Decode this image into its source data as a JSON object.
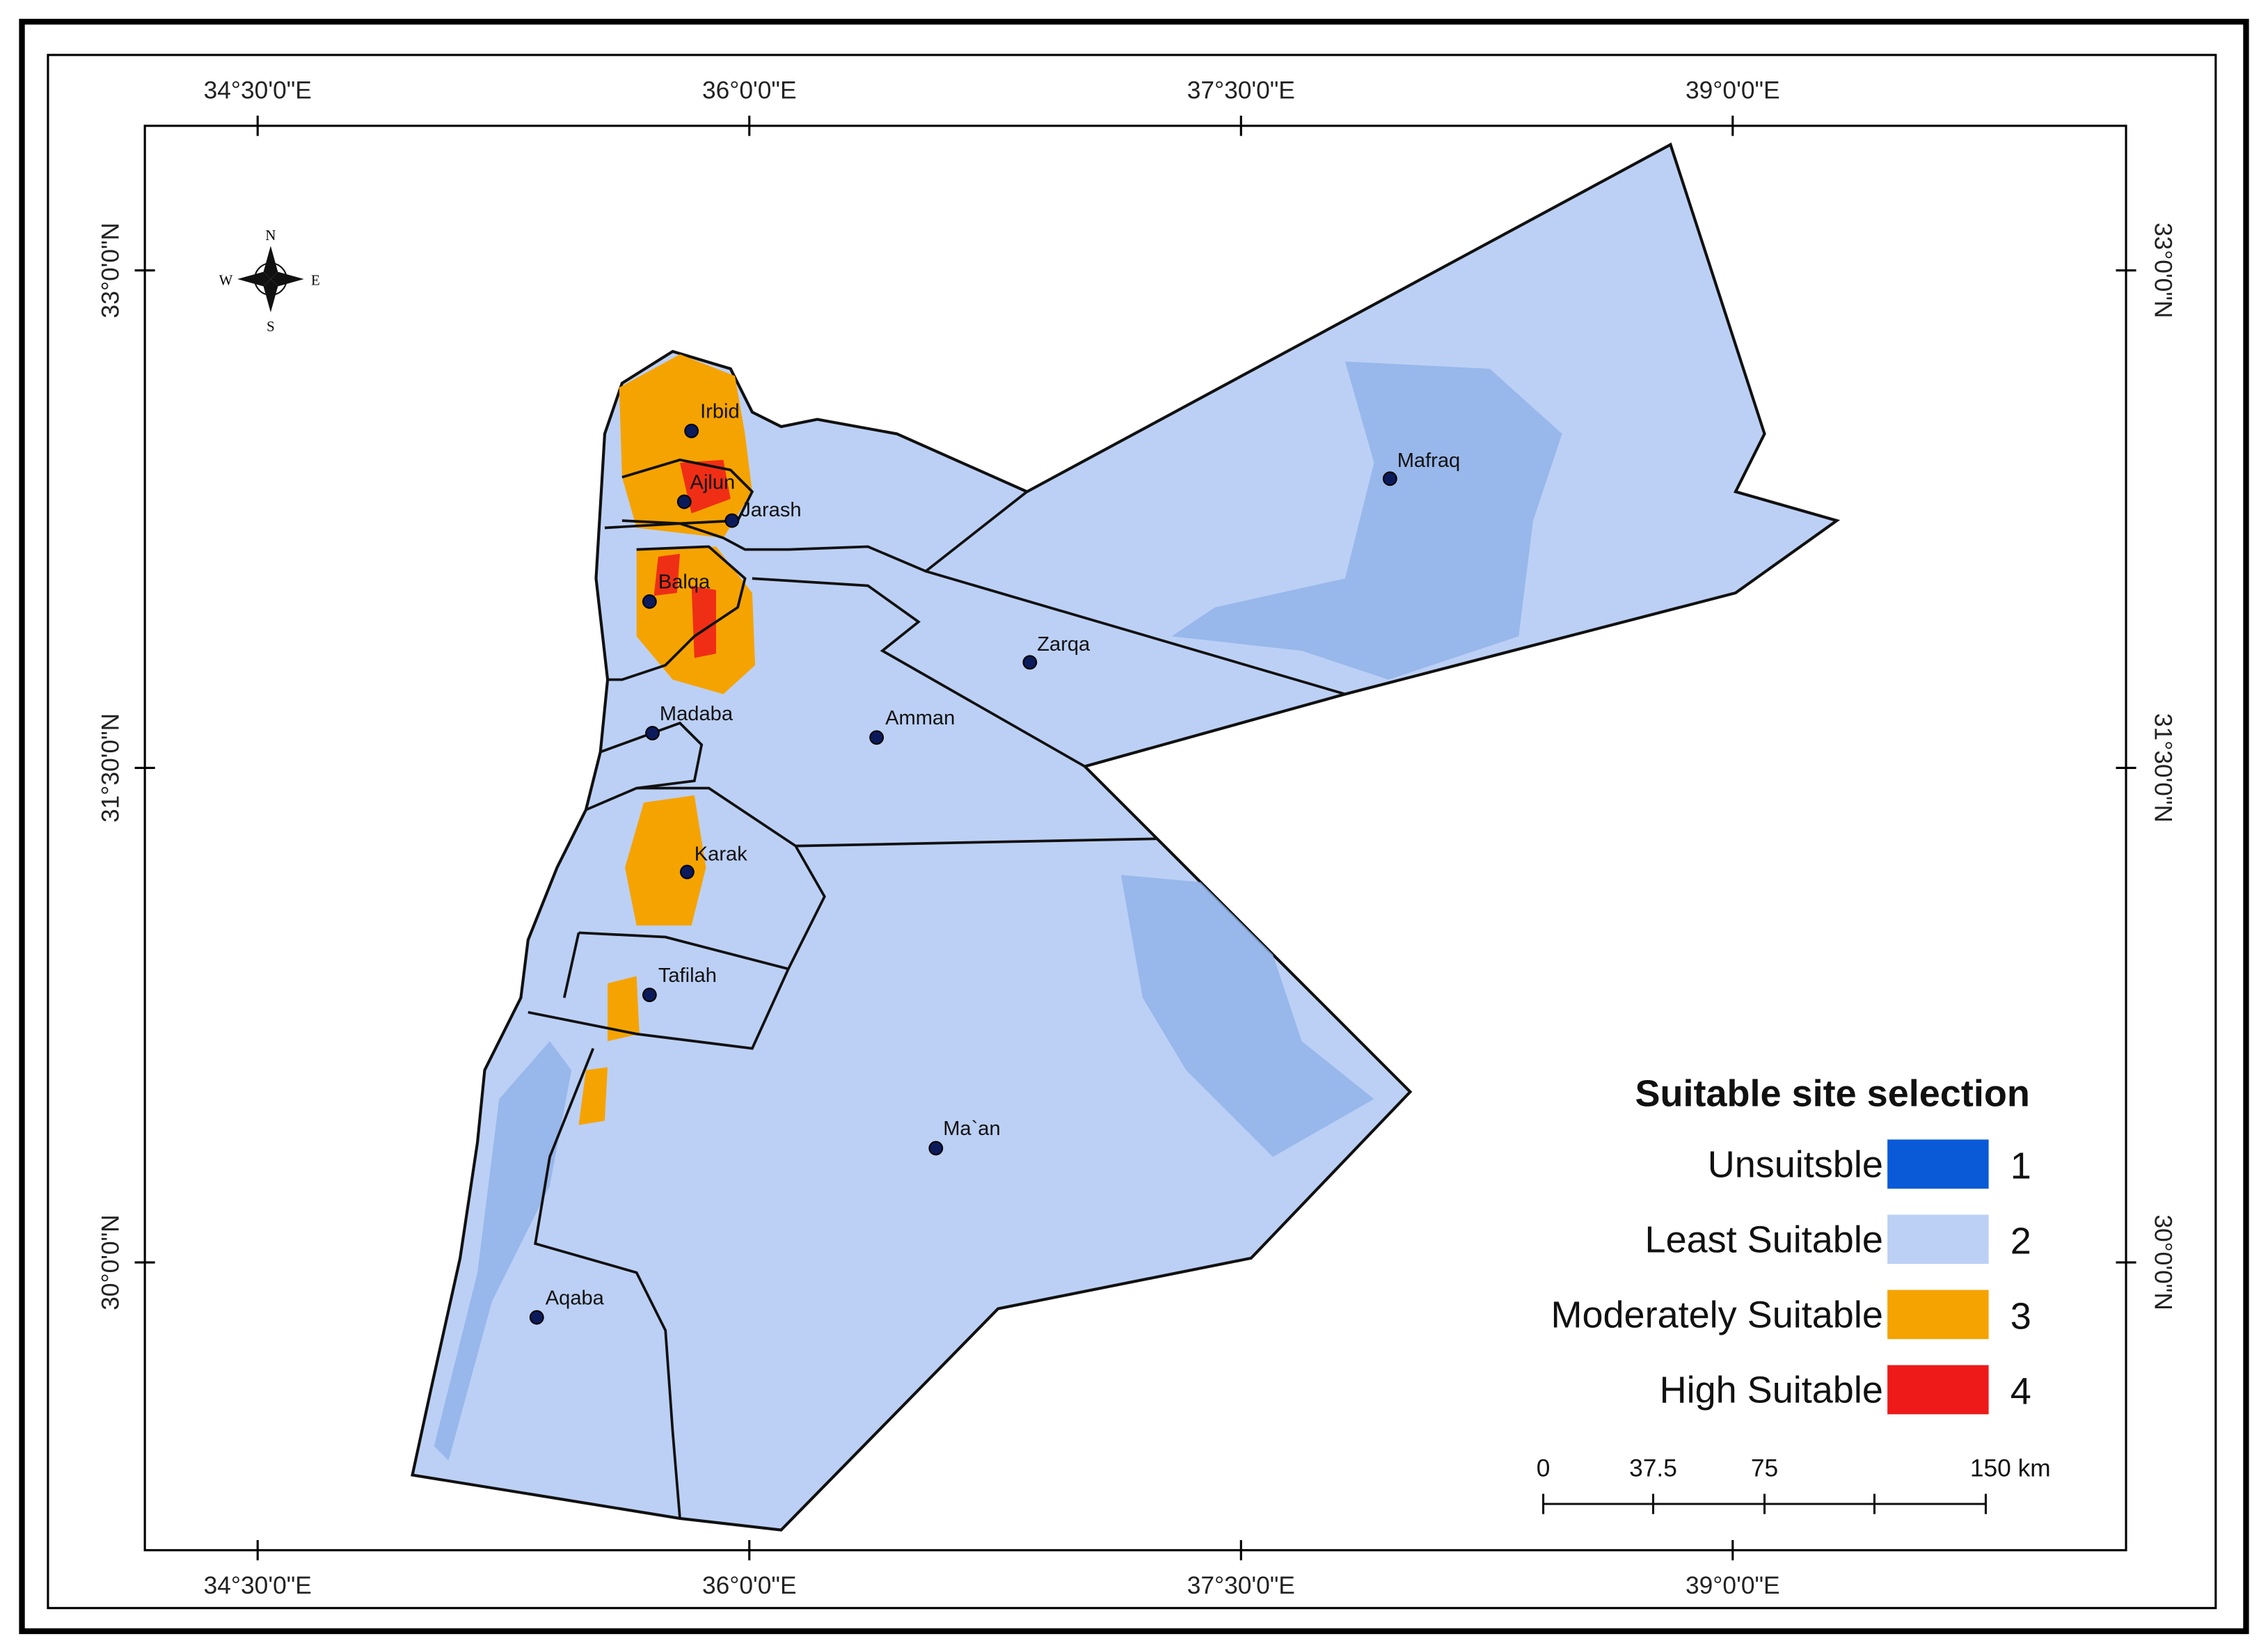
{
  "map": {
    "lon_labels": [
      "34°30'0\"E",
      "36°0'0\"E",
      "37°30'0\"E",
      "39°0'0\"E"
    ],
    "lat_labels": [
      "33°0'0\"N",
      "31°30'0\"N",
      "30°0'0\"N"
    ],
    "compass": {
      "n": "N",
      "s": "S",
      "e": "E",
      "w": "W"
    },
    "cities": [
      "Irbid",
      "Ajlun",
      "Jarash",
      "Balqa",
      "Mafraq",
      "Zarqa",
      "Madaba",
      "Amman",
      "Karak",
      "Tafilah",
      "Ma`an",
      "Aqaba"
    ],
    "legend": {
      "title": "Suitable site selection",
      "items": [
        {
          "label": "Unsuitsble",
          "class": 1,
          "color": "#0a5ad7"
        },
        {
          "label": "Least Suitable",
          "class": 2,
          "color": "#bcd0f5"
        },
        {
          "label": "Moderately Suitable",
          "class": 3,
          "color": "#f5a300"
        },
        {
          "label": "High Suitable",
          "class": 4,
          "color": "#ee1a1a"
        }
      ]
    },
    "scale_bar": [
      "0",
      "37.5",
      "75",
      "150 km"
    ]
  }
}
